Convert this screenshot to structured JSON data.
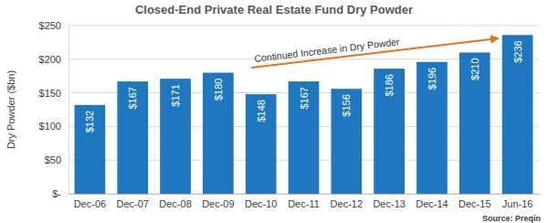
{
  "chart_data": {
    "type": "bar",
    "title": "Closed-End Private Real Estate Fund Dry Powder",
    "y_label": "Dry Powder ($bn)",
    "categories": [
      "Dec-06",
      "Dec-07",
      "Dec-08",
      "Dec-09",
      "Dec-10",
      "Dec-11",
      "Dec-12",
      "Dec-13",
      "Dec-14",
      "Dec-15",
      "Jun-16"
    ],
    "values": [
      132,
      167,
      171,
      180,
      148,
      167,
      156,
      186,
      196,
      210,
      236
    ],
    "value_labels": [
      "$132",
      "$167",
      "$171",
      "$180",
      "$148",
      "$167",
      "$156",
      "$186",
      "$196",
      "$210",
      "$236"
    ],
    "color": "#1f77c0",
    "ylim": [
      0,
      250
    ],
    "yticks": [
      {
        "value": 0,
        "label": "$-"
      },
      {
        "value": 50,
        "label": "$50"
      },
      {
        "value": 100,
        "label": "$100"
      },
      {
        "value": 150,
        "label": "$150"
      },
      {
        "value": 200,
        "label": "$200"
      },
      {
        "value": 250,
        "label": "$250"
      }
    ],
    "grid": true,
    "data_labels": true,
    "annotation": "Continued Increase in Dry Powder",
    "source": "Source: Preqin"
  }
}
